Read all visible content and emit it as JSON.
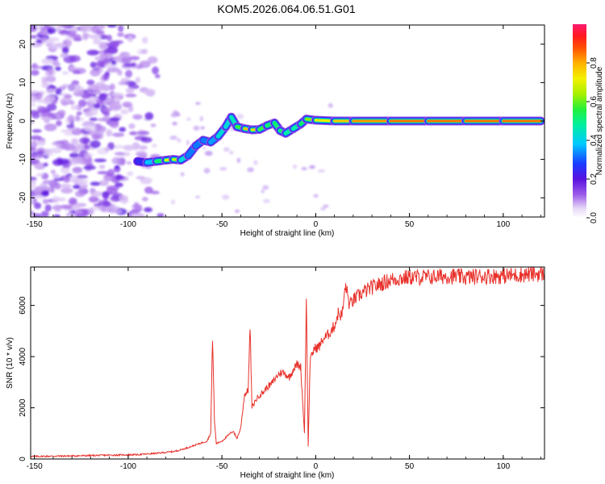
{
  "title": "KOM5.2026.064.06.51.G01",
  "chart_data": [
    {
      "type": "heatmap",
      "name": "spectrogram",
      "xlabel": "Height of straight line (km)",
      "ylabel": "Frequency (Hz)",
      "xlim": [
        -152,
        122
      ],
      "ylim": [
        -25,
        25
      ],
      "xticks": [
        -150,
        -100,
        -50,
        0,
        50,
        100
      ],
      "yticks": [
        -20,
        -10,
        0,
        10,
        20
      ],
      "colorbar": {
        "label": "Normalized spectral amplitude",
        "range": [
          0,
          1
        ],
        "ticks": [
          "0.0",
          "0.2",
          "0.4",
          "0.6",
          "0.8"
        ]
      },
      "signal_track": [
        {
          "x": -95,
          "freq": -10.5,
          "amp": 0.2
        },
        {
          "x": -90,
          "freq": -10.8,
          "amp": 0.3
        },
        {
          "x": -85,
          "freq": -10.5,
          "amp": 0.45
        },
        {
          "x": -80,
          "freq": -10.2,
          "amp": 0.6
        },
        {
          "x": -76,
          "freq": -10.0,
          "amp": 0.85
        },
        {
          "x": -72,
          "freq": -10.2,
          "amp": 0.5
        },
        {
          "x": -68,
          "freq": -9.0,
          "amp": 0.35
        },
        {
          "x": -64,
          "freq": -6.5,
          "amp": 0.3
        },
        {
          "x": -60,
          "freq": -5.0,
          "amp": 0.35
        },
        {
          "x": -56,
          "freq": -5.5,
          "amp": 0.3
        },
        {
          "x": -52,
          "freq": -4.0,
          "amp": 0.4
        },
        {
          "x": -48,
          "freq": -1.5,
          "amp": 0.45
        },
        {
          "x": -45,
          "freq": 1.0,
          "amp": 0.4
        },
        {
          "x": -42,
          "freq": -1.5,
          "amp": 0.5
        },
        {
          "x": -38,
          "freq": -2.0,
          "amp": 0.65
        },
        {
          "x": -34,
          "freq": -2.3,
          "amp": 0.9
        },
        {
          "x": -30,
          "freq": -2.2,
          "amp": 0.6
        },
        {
          "x": -26,
          "freq": -1.2,
          "amp": 0.55
        },
        {
          "x": -22,
          "freq": -0.5,
          "amp": 0.5
        },
        {
          "x": -19,
          "freq": -2.5,
          "amp": 0.55
        },
        {
          "x": -16,
          "freq": -3.2,
          "amp": 0.5
        },
        {
          "x": -12,
          "freq": -2.0,
          "amp": 0.45
        },
        {
          "x": -8,
          "freq": -0.8,
          "amp": 0.5
        },
        {
          "x": -5,
          "freq": 0.5,
          "amp": 0.55
        },
        {
          "x": 0,
          "freq": 0.2,
          "amp": 0.7
        },
        {
          "x": 10,
          "freq": 0.0,
          "amp": 0.75
        },
        {
          "x": 20,
          "freq": 0.0,
          "amp": 0.8
        },
        {
          "x": 40,
          "freq": 0.0,
          "amp": 0.85
        },
        {
          "x": 60,
          "freq": 0.0,
          "amp": 0.85
        },
        {
          "x": 80,
          "freq": 0.0,
          "amp": 0.85
        },
        {
          "x": 100,
          "freq": 0.0,
          "amp": 0.85
        },
        {
          "x": 120,
          "freq": 0.0,
          "amp": 0.85
        }
      ],
      "noise_region_x": [
        -152,
        -80
      ]
    },
    {
      "type": "line",
      "name": "snr",
      "xlabel": "Height of straight line (km)",
      "ylabel": "SNR (10 * v/v)",
      "xlim": [
        -152,
        122
      ],
      "ylim": [
        0,
        7500
      ],
      "xticks": [
        -150,
        -100,
        -50,
        0,
        50,
        100
      ],
      "yticks": [
        0,
        2000,
        4000,
        6000
      ],
      "color": "#e8302a",
      "series": [
        {
          "name": "SNR",
          "points": [
            [
              -152,
              100
            ],
            [
              -130,
              120
            ],
            [
              -110,
              150
            ],
            [
              -95,
              170
            ],
            [
              -85,
              220
            ],
            [
              -75,
              300
            ],
            [
              -70,
              400
            ],
            [
              -66,
              500
            ],
            [
              -62,
              600
            ],
            [
              -58,
              700
            ],
            [
              -56,
              1000
            ],
            [
              -55,
              4800
            ],
            [
              -54,
              1500
            ],
            [
              -53,
              600
            ],
            [
              -50,
              700
            ],
            [
              -47,
              900
            ],
            [
              -44,
              1100
            ],
            [
              -42,
              800
            ],
            [
              -40,
              1200
            ],
            [
              -38,
              2500
            ],
            [
              -36,
              2700
            ],
            [
              -35,
              5200
            ],
            [
              -34,
              2000
            ],
            [
              -32,
              2300
            ],
            [
              -30,
              2500
            ],
            [
              -28,
              2600
            ],
            [
              -26,
              2800
            ],
            [
              -24,
              2900
            ],
            [
              -22,
              3100
            ],
            [
              -20,
              3300
            ],
            [
              -18,
              3400
            ],
            [
              -16,
              3300
            ],
            [
              -14,
              3200
            ],
            [
              -12,
              3500
            ],
            [
              -10,
              3700
            ],
            [
              -8,
              3600
            ],
            [
              -6,
              1000
            ],
            [
              -5,
              6400
            ],
            [
              -4,
              500
            ],
            [
              -3,
              3800
            ],
            [
              -1,
              4300
            ],
            [
              2,
              4400
            ],
            [
              4,
              4700
            ],
            [
              6,
              4800
            ],
            [
              8,
              5000
            ],
            [
              10,
              5200
            ],
            [
              12,
              5700
            ],
            [
              14,
              5600
            ],
            [
              16,
              6800
            ],
            [
              18,
              6000
            ],
            [
              20,
              6200
            ],
            [
              25,
              6500
            ],
            [
              30,
              6700
            ],
            [
              35,
              6850
            ],
            [
              40,
              7000
            ],
            [
              45,
              7050
            ],
            [
              50,
              7100
            ],
            [
              60,
              7100
            ],
            [
              70,
              7150
            ],
            [
              80,
              7100
            ],
            [
              90,
              7150
            ],
            [
              100,
              7150
            ],
            [
              110,
              7200
            ],
            [
              122,
              7250
            ]
          ]
        }
      ]
    }
  ]
}
